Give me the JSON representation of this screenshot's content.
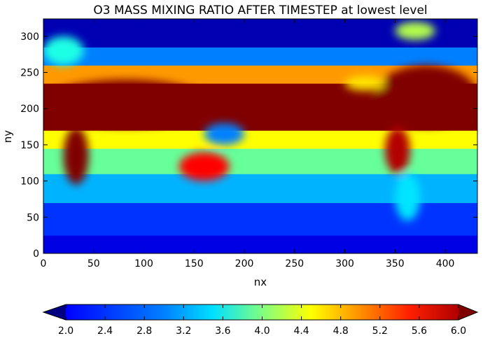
{
  "chart_data": {
    "type": "heatmap",
    "title": "O3 MASS MIXING RATIO AFTER TIMESTEP  at lowest level",
    "xlabel": "nx",
    "ylabel": "ny",
    "xlim": [
      0,
      432
    ],
    "ylim": [
      0,
      324
    ],
    "xticks": [
      0,
      50,
      100,
      150,
      200,
      250,
      300,
      350,
      400
    ],
    "yticks": [
      0,
      50,
      100,
      150,
      200,
      250,
      300
    ],
    "grid": false,
    "colormap": "jet",
    "colorbar": {
      "orientation": "horizontal",
      "extend": "both",
      "range": [
        2.0,
        6.0
      ],
      "ticks": [
        "2.0",
        "2.4",
        "2.8",
        "3.2",
        "3.6",
        "4.0",
        "4.4",
        "4.8",
        "5.2",
        "5.6",
        "6.0"
      ]
    },
    "value_bands": [
      {
        "y": [
          0,
          25
        ],
        "value": 2.4
      },
      {
        "y": [
          25,
          70
        ],
        "value": 2.7
      },
      {
        "y": [
          70,
          110
        ],
        "value": 3.2
      },
      {
        "y": [
          110,
          145
        ],
        "value": 3.9
      },
      {
        "y": [
          145,
          170
        ],
        "value": 4.5
      },
      {
        "y": [
          170,
          235
        ],
        "value": 6.0
      },
      {
        "y": [
          235,
          260
        ],
        "value": 4.9
      },
      {
        "y": [
          260,
          285
        ],
        "value": 3.0
      },
      {
        "y": [
          285,
          324
        ],
        "value": 2.2
      }
    ],
    "features": [
      {
        "x": [
          0,
          165
        ],
        "y": [
          175,
          240
        ],
        "value": 6.0
      },
      {
        "x": [
          20,
          45
        ],
        "y": [
          95,
          175
        ],
        "value": 6.0
      },
      {
        "x": [
          135,
          185
        ],
        "y": [
          100,
          140
        ],
        "value": 5.5
      },
      {
        "x": [
          160,
          200
        ],
        "y": [
          150,
          180
        ],
        "value": 3.0
      },
      {
        "x": [
          330,
          432
        ],
        "y": [
          175,
          260
        ],
        "value": 6.0
      },
      {
        "x": [
          340,
          365
        ],
        "y": [
          110,
          175
        ],
        "value": 5.8
      },
      {
        "x": [
          350,
          375
        ],
        "y": [
          45,
          110
        ],
        "value": 3.4
      },
      {
        "x": [
          300,
          340
        ],
        "y": [
          225,
          245
        ],
        "value": 4.6
      },
      {
        "x": [
          350,
          390
        ],
        "y": [
          295,
          320
        ],
        "value": 4.2
      },
      {
        "x": [
          0,
          40
        ],
        "y": [
          260,
          300
        ],
        "value": 3.6
      }
    ],
    "colors": {
      "low_extend": "#000080",
      "high_extend": "#800000"
    }
  }
}
